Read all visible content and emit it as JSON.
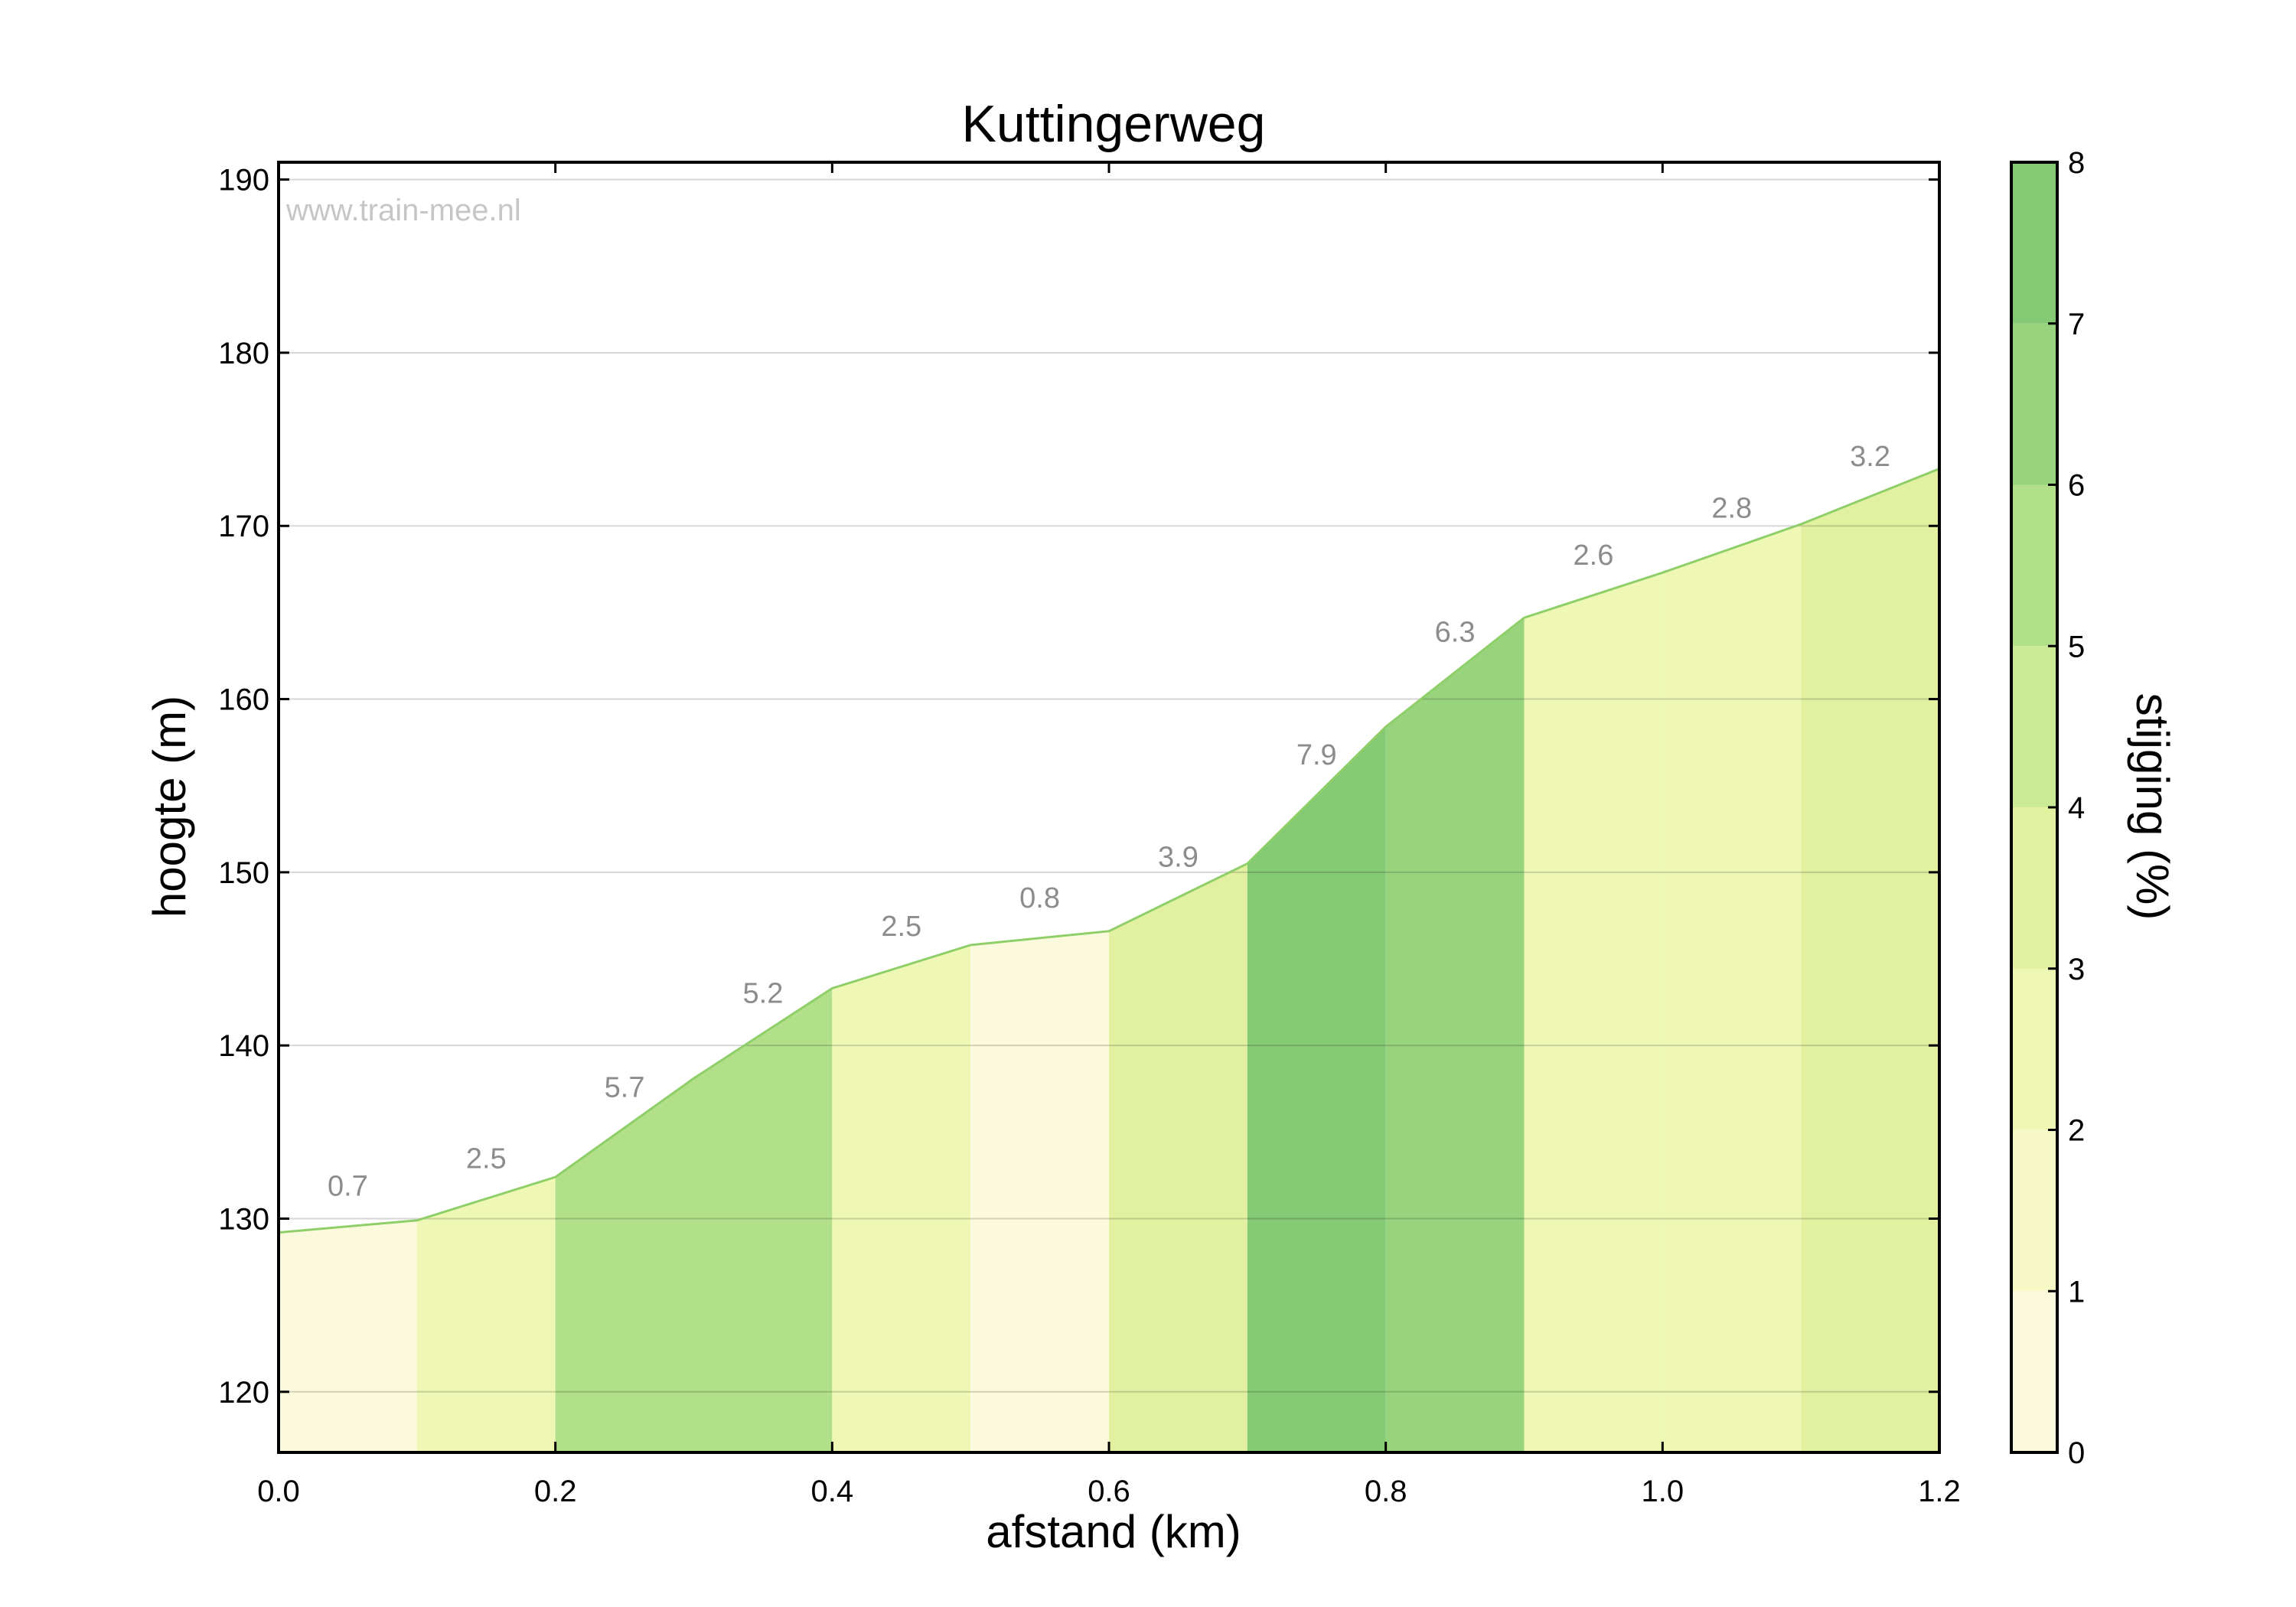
{
  "chart_data": {
    "type": "area",
    "title": "Kuttingerweg",
    "xlabel": "afstand (km)",
    "ylabel": "hoogte (m)",
    "watermark": "www.train-mee.nl",
    "xlim": [
      0.0,
      1.2
    ],
    "ylim": [
      116.5,
      191.0
    ],
    "xticks": [
      "0.0",
      "0.2",
      "0.4",
      "0.6",
      "0.8",
      "1.0",
      "1.2"
    ],
    "yticks": [
      "120",
      "130",
      "140",
      "150",
      "160",
      "170",
      "180",
      "190"
    ],
    "grid": true,
    "x": [
      0.0,
      0.1,
      0.2,
      0.3,
      0.4,
      0.5,
      0.6,
      0.7,
      0.8,
      0.9,
      1.0,
      1.1,
      1.2
    ],
    "elevation": [
      129.2,
      129.9,
      132.4,
      138.1,
      143.3,
      145.8,
      146.6,
      150.5,
      158.4,
      164.7,
      167.3,
      170.1,
      173.3
    ],
    "segments": [
      {
        "start": 0.0,
        "end": 0.1,
        "grade": 0.7,
        "label": "0.7"
      },
      {
        "start": 0.1,
        "end": 0.2,
        "grade": 2.5,
        "label": "2.5"
      },
      {
        "start": 0.2,
        "end": 0.3,
        "grade": 5.7,
        "label": "5.7"
      },
      {
        "start": 0.3,
        "end": 0.4,
        "grade": 5.2,
        "label": "5.2"
      },
      {
        "start": 0.4,
        "end": 0.5,
        "grade": 2.5,
        "label": "2.5"
      },
      {
        "start": 0.5,
        "end": 0.6,
        "grade": 0.8,
        "label": "0.8"
      },
      {
        "start": 0.6,
        "end": 0.7,
        "grade": 3.9,
        "label": "3.9"
      },
      {
        "start": 0.7,
        "end": 0.8,
        "grade": 7.9,
        "label": "7.9"
      },
      {
        "start": 0.8,
        "end": 0.9,
        "grade": 6.3,
        "label": "6.3"
      },
      {
        "start": 0.9,
        "end": 1.0,
        "grade": 2.6,
        "label": "2.6"
      },
      {
        "start": 1.0,
        "end": 1.1,
        "grade": 2.8,
        "label": "2.8"
      },
      {
        "start": 1.1,
        "end": 1.2,
        "grade": 3.2,
        "label": "3.2"
      }
    ],
    "colorbar": {
      "label": "stijging (%)",
      "range": [
        0,
        8
      ],
      "ticks": [
        "0",
        "1",
        "2",
        "3",
        "4",
        "5",
        "6",
        "7",
        "8"
      ],
      "colors": [
        "#fbfadc",
        "#f6f9c5",
        "#eef8b4",
        "#e1f1a0",
        "#cbea95",
        "#b2df89",
        "#98d37e",
        "#84c974",
        "#71c56d"
      ]
    },
    "line_color": "#8fcf69"
  }
}
